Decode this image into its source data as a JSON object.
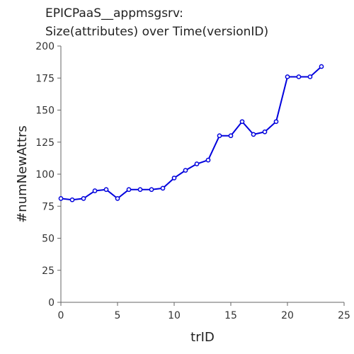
{
  "chart_data": {
    "type": "line",
    "title_lines": [
      "EPICPaaS__appmsgsrv:",
      "Size(attributes) over Time(versionID)"
    ],
    "xlabel": "trID",
    "ylabel": "#numNewAttrs",
    "xlim": [
      0,
      25
    ],
    "ylim": [
      0,
      200
    ],
    "x_ticks": [
      0,
      5,
      10,
      15,
      20,
      25
    ],
    "y_ticks": [
      0,
      25,
      50,
      75,
      100,
      125,
      150,
      175,
      200
    ],
    "grid": false,
    "series": [
      {
        "color": "#0000dd",
        "marker": "circle",
        "x": [
          0,
          1,
          2,
          3,
          4,
          5,
          6,
          7,
          8,
          9,
          10,
          11,
          12,
          13,
          14,
          15,
          16,
          17,
          18,
          19,
          20,
          21,
          22,
          23
        ],
        "y": [
          81,
          80,
          81,
          87,
          88,
          81,
          88,
          88,
          88,
          89,
          97,
          103,
          108,
          111,
          130,
          130,
          141,
          131,
          133,
          141,
          176,
          176,
          176,
          184
        ]
      }
    ]
  }
}
